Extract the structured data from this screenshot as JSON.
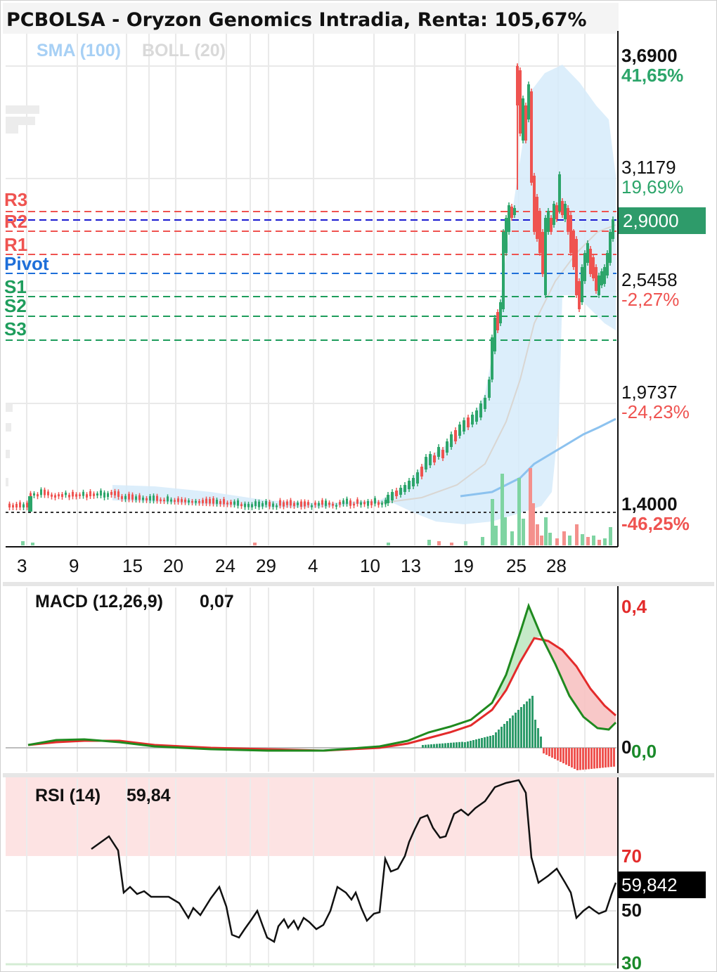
{
  "header": {
    "title": "PCBOLSA - Oryzon Genomics Intradia, Renta: 105,67%"
  },
  "overlays": {
    "sma_label": "SMA (100)",
    "boll_label": "BOLL (20)"
  },
  "price_axis": {
    "ticks": [
      {
        "price": "3,6900",
        "pct": "41,65%",
        "dir": "up"
      },
      {
        "price": "3,1179",
        "pct": "19,69%",
        "dir": "up"
      },
      {
        "price": "2,5458",
        "pct": "-2,27%",
        "dir": "down"
      },
      {
        "price": "1,9737",
        "pct": "-24,23%",
        "dir": "down"
      },
      {
        "price": "1,4000",
        "pct": "-46,25%",
        "dir": "down"
      }
    ],
    "current_price": "2,9000"
  },
  "levels": [
    {
      "name": "R3",
      "value": 2.9,
      "color": "#ef5350"
    },
    {
      "name": "R2",
      "value": 2.84,
      "color": "#ef5350"
    },
    {
      "name": "R1",
      "value": 2.7,
      "color": "#ef5350"
    },
    {
      "name": "Pivot",
      "value": 2.56,
      "color": "#1e6fd9"
    },
    {
      "name": "S1",
      "value": 2.4,
      "color": "#1e9d5c"
    },
    {
      "name": "S2",
      "value": 2.26,
      "color": "#1e9d5c"
    },
    {
      "name": "S3",
      "value": 2.09,
      "color": "#1e9d5c"
    }
  ],
  "x_axis_labels": [
    "3",
    "9",
    "15",
    "20",
    "24",
    "29",
    "4",
    "10",
    "13",
    "19",
    "25",
    "28"
  ],
  "macd": {
    "label": "MACD (12,26,9)",
    "value": "0,07",
    "axis_top": "0,4",
    "axis_zero_left": "0",
    "axis_zero_right": "0,0"
  },
  "rsi": {
    "label": "RSI (14)",
    "value": "59,84",
    "current": "59,842",
    "axis": [
      "70",
      "50",
      "30"
    ]
  },
  "colors": {
    "up": "#2ca56a",
    "down": "#ef5350",
    "boll_fill": "#d6ebfa",
    "sma": "#8cc2ef",
    "pivot": "#1e6fd9",
    "price_badge": "#2e9b6a"
  },
  "chart_data": {
    "type": "candlestick",
    "symbol": "Oryzon Genomics",
    "x_ticks": [
      "3",
      "9",
      "15",
      "20",
      "24",
      "29",
      "4",
      "10",
      "13",
      "19",
      "25",
      "28"
    ],
    "price_close": [
      1.45,
      1.48,
      1.5,
      1.49,
      1.5,
      1.51,
      1.5,
      1.49,
      1.5,
      1.47,
      1.46,
      1.46,
      1.45,
      1.44,
      1.45,
      1.44,
      1.43,
      1.42,
      1.42,
      1.41,
      1.42,
      1.43,
      1.42,
      1.42,
      1.43,
      1.48,
      1.54,
      1.6,
      1.68,
      1.75,
      1.82,
      1.9,
      1.96,
      2.3,
      2.7,
      3.3,
      3.6,
      3.5,
      2.9,
      2.7,
      3.0,
      2.9,
      2.75,
      2.55,
      2.45,
      2.6,
      2.5,
      2.9
    ],
    "ylim": [
      1.4,
      3.69
    ],
    "macd": {
      "value": 0.07,
      "ylim": [
        0,
        0.4
      ]
    },
    "rsi": {
      "value": 59.84,
      "levels": [
        70,
        50,
        30
      ]
    }
  }
}
